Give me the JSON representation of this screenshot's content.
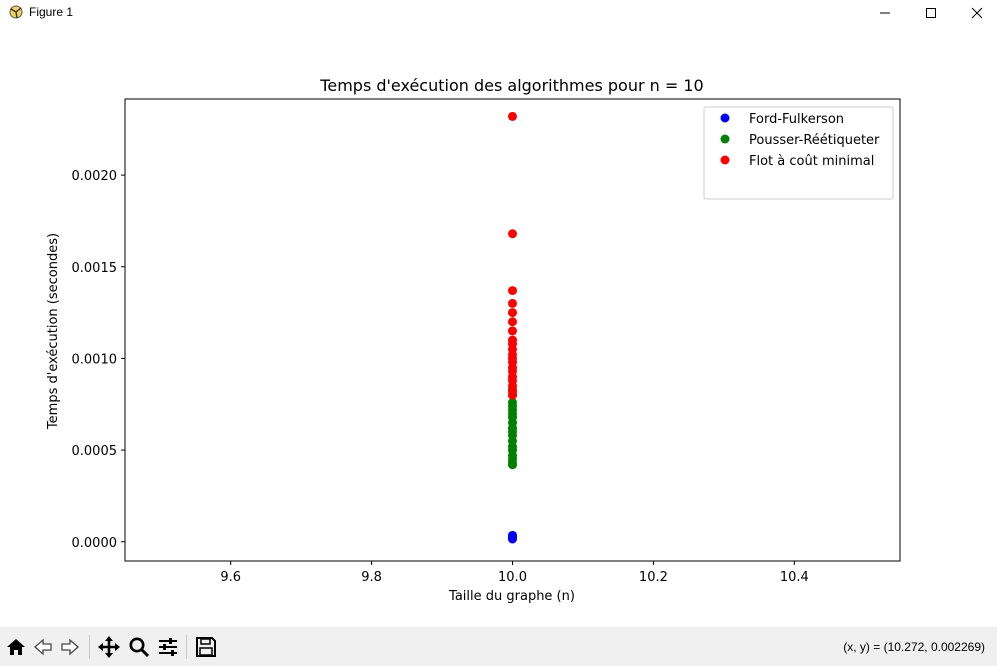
{
  "window": {
    "title": "Figure 1",
    "app_icon": "matplotlib-figure-icon",
    "controls": [
      "minimize-icon",
      "maximize-icon",
      "close-icon"
    ]
  },
  "toolbar": {
    "tools": [
      "home-icon",
      "back-arrow-icon",
      "forward-arrow-icon",
      "pan-icon",
      "zoom-magnifier-icon",
      "configure-subplots-icon",
      "save-icon"
    ],
    "coords": "(x, y) = (10.272, 0.002269)"
  },
  "chart_data": {
    "type": "scatter",
    "title": "Temps d'exécution des algorithmes pour n = 10",
    "xlabel": "Taille du graphe (n)",
    "ylabel": "Temps d'exécution (secondes)",
    "xlim": [
      9.45,
      10.55
    ],
    "ylim": [
      -0.000105,
      0.002415
    ],
    "xticks": [
      9.6,
      9.8,
      10.0,
      10.2,
      10.4
    ],
    "xtick_labels": [
      "9.6",
      "9.8",
      "10.0",
      "10.2",
      "10.4"
    ],
    "yticks": [
      0.0,
      0.0005,
      0.001,
      0.0015,
      0.002
    ],
    "ytick_labels": [
      "0.0000",
      "0.0005",
      "0.0010",
      "0.0015",
      "0.0020"
    ],
    "grid": false,
    "legend_position": "upper right",
    "series": [
      {
        "name": "Ford-Fulkerson",
        "color": "#0000ff",
        "x": [
          10,
          10,
          10,
          10,
          10
        ],
        "y": [
          1.5e-05,
          2e-05,
          2.5e-05,
          3e-05,
          3.5e-05
        ]
      },
      {
        "name": "Pousser-Réétiqueter",
        "color": "#008000",
        "x": [
          10,
          10,
          10,
          10,
          10,
          10,
          10,
          10,
          10,
          10,
          10,
          10,
          10,
          10,
          10,
          10,
          10,
          10
        ],
        "y": [
          0.00042,
          0.00043,
          0.00045,
          0.00047,
          0.0005,
          0.00052,
          0.00055,
          0.00058,
          0.0006,
          0.00062,
          0.00065,
          0.00068,
          0.0007,
          0.00072,
          0.00074,
          0.00076,
          0.0008,
          0.00083
        ]
      },
      {
        "name": "Flot à coût minimal",
        "color": "#ff0000",
        "x": [
          10,
          10,
          10,
          10,
          10,
          10,
          10,
          10,
          10,
          10,
          10,
          10,
          10,
          10,
          10,
          10,
          10,
          10,
          10,
          10
        ],
        "y": [
          0.0008,
          0.00082,
          0.00085,
          0.00088,
          0.0009,
          0.00093,
          0.00095,
          0.00098,
          0.001,
          0.00102,
          0.00105,
          0.00108,
          0.0011,
          0.00115,
          0.0012,
          0.00125,
          0.0013,
          0.00137,
          0.00168,
          0.00232
        ]
      }
    ]
  }
}
